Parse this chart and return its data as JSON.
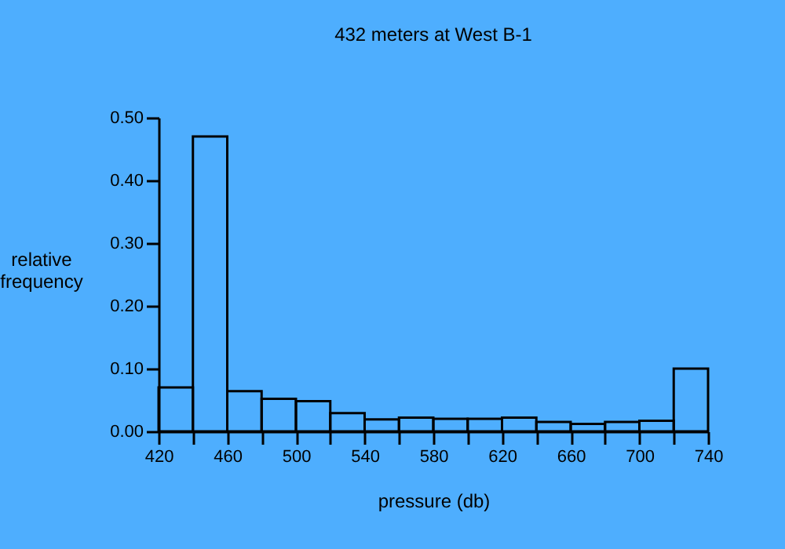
{
  "chart_data": {
    "type": "histogram",
    "title": "432 meters at West B-1",
    "xlabel": "pressure (db)",
    "ylabel": "relative\nfrequency",
    "bins": [
      420,
      440,
      460,
      480,
      500,
      520,
      540,
      560,
      580,
      600,
      620,
      640,
      660,
      680,
      700,
      720,
      740
    ],
    "values": [
      0.07,
      0.47,
      0.064,
      0.052,
      0.048,
      0.029,
      0.019,
      0.022,
      0.02,
      0.02,
      0.022,
      0.015,
      0.012,
      0.015,
      0.017,
      0.1
    ],
    "color": "#000000",
    "xlim": [
      420,
      740
    ],
    "xticks": [
      420,
      {
        "value": 440,
        "label": null
      },
      460,
      {
        "value": 480,
        "label": null
      },
      500,
      {
        "value": 520,
        "label": null
      },
      540,
      {
        "value": 560,
        "label": null
      },
      580,
      {
        "value": 600,
        "label": null
      },
      620,
      {
        "value": 640,
        "label": null
      },
      660,
      {
        "value": 680,
        "label": null
      },
      700,
      {
        "value": 720,
        "label": null
      },
      740
    ],
    "ylim": [
      0,
      0.5
    ],
    "yticks": [
      {
        "value": 0,
        "label": "0.00"
      },
      {
        "value": 0.1,
        "label": "0.10"
      },
      {
        "value": 0.2,
        "label": "0.20"
      },
      {
        "value": 0.3,
        "label": "0.30"
      },
      {
        "value": 0.4,
        "label": "0.40"
      },
      {
        "value": 0.5,
        "label": "0.50"
      }
    ],
    "grid": false
  }
}
